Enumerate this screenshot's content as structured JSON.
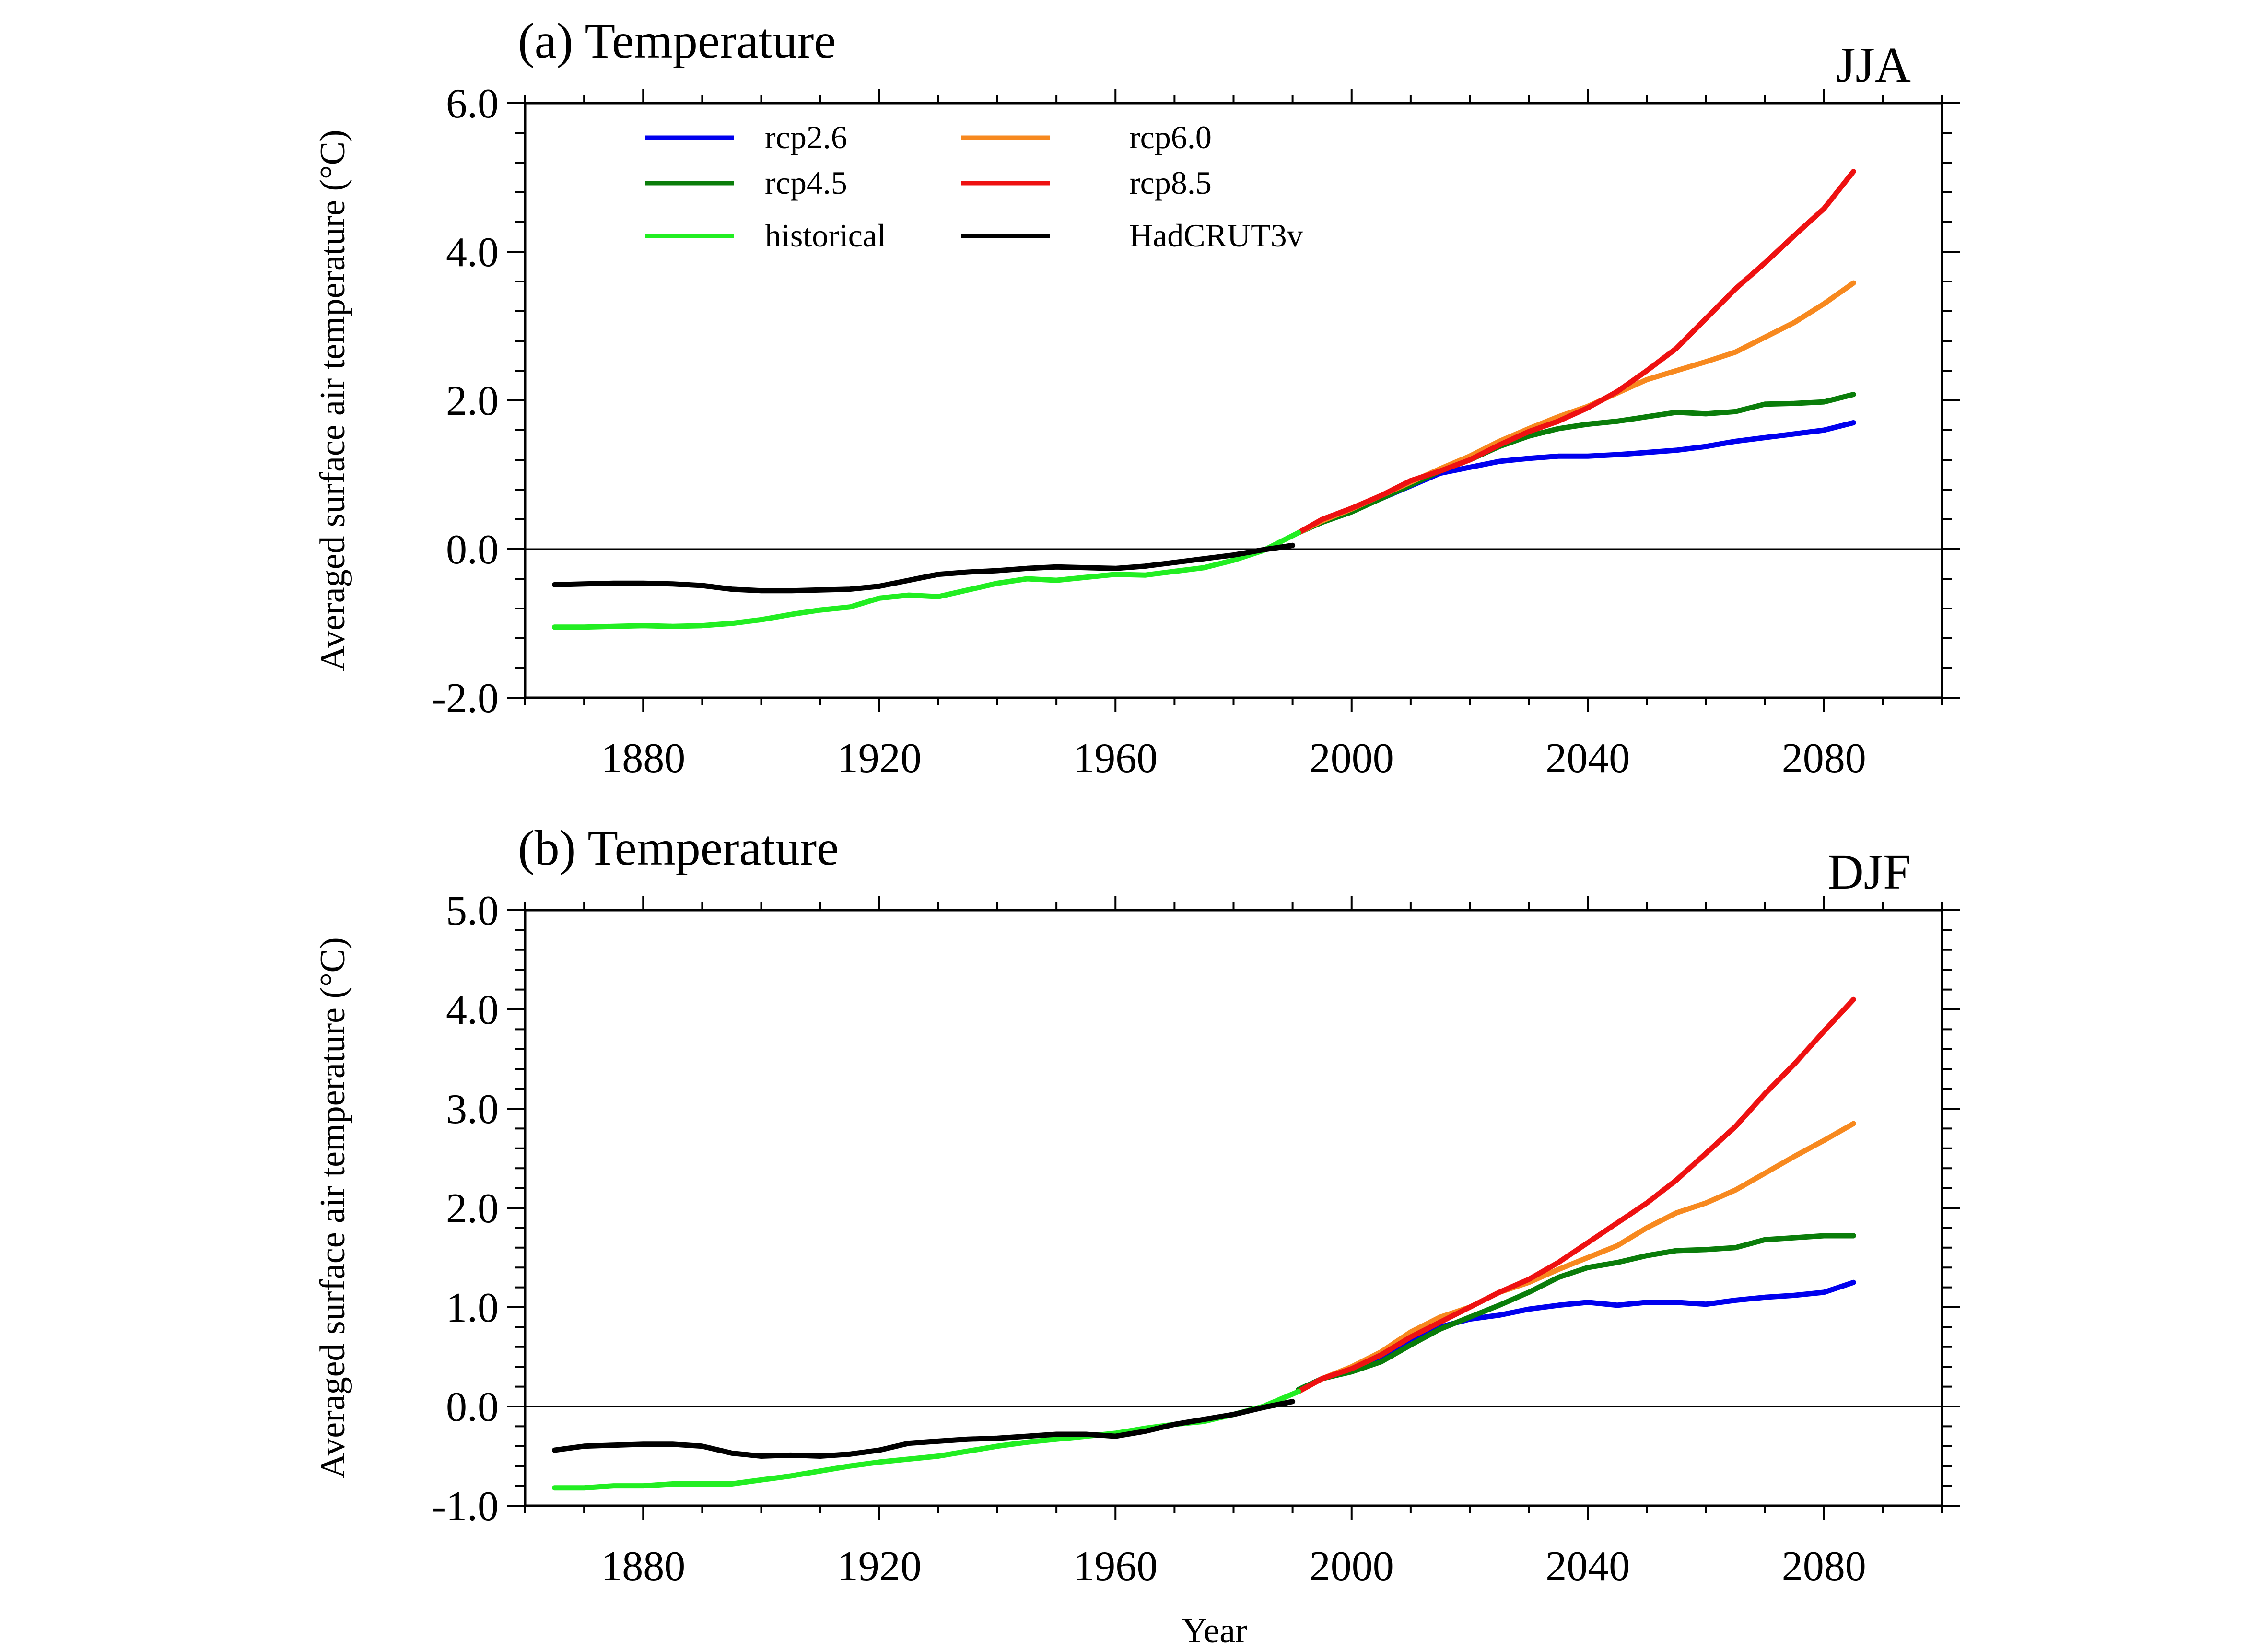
{
  "chart_data": [
    {
      "type": "line",
      "title": "(a) Temperature",
      "season": "JJA",
      "ylabel": "Averaged surface air temperature (°C)",
      "xlabel": "",
      "xlim": [
        1860,
        2100
      ],
      "ylim": [
        -2.0,
        6.0
      ],
      "x_ticks": [
        1880,
        1920,
        1960,
        2000,
        2040,
        2080
      ],
      "x_tick_labels": [
        "1880",
        "1920",
        "1960",
        "2000",
        "2040",
        "2080"
      ],
      "y_ticks": [
        -2.0,
        0.0,
        2.0,
        4.0,
        6.0
      ],
      "y_tick_labels": [
        "-2.0",
        "0.0",
        "2.0",
        "4.0",
        "6.0"
      ],
      "zero_line": true,
      "legend_position": "top-left",
      "series": [
        {
          "name": "rcp2.6",
          "color": "#0000ee",
          "x": [
            1991,
            1995,
            2000,
            2005,
            2010,
            2015,
            2020,
            2025,
            2030,
            2035,
            2040,
            2045,
            2050,
            2055,
            2060,
            2065,
            2070,
            2075,
            2080,
            2085
          ],
          "y": [
            0.22,
            0.38,
            0.52,
            0.68,
            0.85,
            1.02,
            1.1,
            1.18,
            1.22,
            1.25,
            1.25,
            1.27,
            1.3,
            1.33,
            1.38,
            1.45,
            1.5,
            1.55,
            1.6,
            1.7
          ]
        },
        {
          "name": "rcp4.5",
          "color": "#0a7d0a",
          "x": [
            1991,
            1995,
            2000,
            2005,
            2010,
            2015,
            2020,
            2025,
            2030,
            2035,
            2040,
            2045,
            2050,
            2055,
            2060,
            2065,
            2070,
            2075,
            2080,
            2085
          ],
          "y": [
            0.22,
            0.36,
            0.5,
            0.68,
            0.86,
            1.05,
            1.2,
            1.38,
            1.52,
            1.62,
            1.68,
            1.72,
            1.78,
            1.84,
            1.82,
            1.85,
            1.95,
            1.96,
            1.98,
            2.08
          ]
        },
        {
          "name": "rcp6.0",
          "color": "#f7891f",
          "x": [
            1991,
            1995,
            2000,
            2005,
            2010,
            2015,
            2020,
            2025,
            2030,
            2035,
            2040,
            2045,
            2050,
            2055,
            2060,
            2065,
            2070,
            2075,
            2080,
            2085
          ],
          "y": [
            0.22,
            0.38,
            0.54,
            0.72,
            0.9,
            1.08,
            1.25,
            1.45,
            1.62,
            1.78,
            1.92,
            2.1,
            2.28,
            2.4,
            2.52,
            2.65,
            2.85,
            3.05,
            3.3,
            3.58
          ]
        },
        {
          "name": "rcp8.5",
          "color": "#ee1111",
          "x": [
            1991,
            1995,
            2000,
            2005,
            2010,
            2015,
            2020,
            2025,
            2030,
            2035,
            2040,
            2045,
            2050,
            2055,
            2060,
            2065,
            2070,
            2075,
            2080,
            2085
          ],
          "y": [
            0.22,
            0.4,
            0.55,
            0.72,
            0.92,
            1.05,
            1.2,
            1.4,
            1.58,
            1.72,
            1.9,
            2.12,
            2.4,
            2.7,
            3.1,
            3.5,
            3.85,
            4.22,
            4.58,
            5.08
          ]
        },
        {
          "name": "historical",
          "color": "#22ee22",
          "x": [
            1865,
            1870,
            1875,
            1880,
            1885,
            1890,
            1895,
            1900,
            1905,
            1910,
            1915,
            1920,
            1925,
            1930,
            1935,
            1940,
            1945,
            1950,
            1955,
            1960,
            1965,
            1970,
            1975,
            1980,
            1985,
            1991
          ],
          "y": [
            -1.05,
            -1.05,
            -1.04,
            -1.03,
            -1.04,
            -1.03,
            -1.0,
            -0.95,
            -0.88,
            -0.82,
            -0.78,
            -0.66,
            -0.62,
            -0.64,
            -0.55,
            -0.46,
            -0.4,
            -0.42,
            -0.38,
            -0.34,
            -0.35,
            -0.3,
            -0.25,
            -0.15,
            -0.02,
            0.22
          ]
        },
        {
          "name": "HadCRUT3v",
          "color": "#000000",
          "x": [
            1865,
            1870,
            1875,
            1880,
            1885,
            1890,
            1895,
            1900,
            1905,
            1910,
            1915,
            1920,
            1925,
            1930,
            1935,
            1940,
            1945,
            1950,
            1955,
            1960,
            1965,
            1970,
            1975,
            1980,
            1985,
            1990
          ],
          "y": [
            -0.48,
            -0.47,
            -0.46,
            -0.46,
            -0.47,
            -0.49,
            -0.54,
            -0.56,
            -0.56,
            -0.55,
            -0.54,
            -0.5,
            -0.42,
            -0.34,
            -0.31,
            -0.29,
            -0.26,
            -0.24,
            -0.25,
            -0.26,
            -0.23,
            -0.18,
            -0.13,
            -0.08,
            -0.01,
            0.05
          ]
        }
      ]
    },
    {
      "type": "line",
      "title": "(b) Temperature",
      "season": "DJF",
      "ylabel": "Averaged surface air temperature (°C)",
      "xlabel": "Year",
      "xlim": [
        1860,
        2100
      ],
      "ylim": [
        -1.0,
        5.0
      ],
      "x_ticks": [
        1880,
        1920,
        1960,
        2000,
        2040,
        2080
      ],
      "x_tick_labels": [
        "1880",
        "1920",
        "1960",
        "2000",
        "2040",
        "2080"
      ],
      "y_ticks": [
        -1.0,
        0.0,
        1.0,
        2.0,
        3.0,
        4.0,
        5.0
      ],
      "y_tick_labels": [
        "-1.0",
        "0.0",
        "1.0",
        "2.0",
        "3.0",
        "4.0",
        "5.0"
      ],
      "zero_line": true,
      "series": [
        {
          "name": "rcp2.6",
          "color": "#0000ee",
          "x": [
            1991,
            1995,
            2000,
            2005,
            2010,
            2015,
            2020,
            2025,
            2030,
            2035,
            2040,
            2045,
            2050,
            2055,
            2060,
            2065,
            2070,
            2075,
            2080,
            2085
          ],
          "y": [
            0.17,
            0.28,
            0.38,
            0.5,
            0.68,
            0.8,
            0.88,
            0.92,
            0.98,
            1.02,
            1.05,
            1.02,
            1.05,
            1.05,
            1.03,
            1.07,
            1.1,
            1.12,
            1.15,
            1.25
          ]
        },
        {
          "name": "rcp4.5",
          "color": "#0a7d0a",
          "x": [
            1991,
            1995,
            2000,
            2005,
            2010,
            2015,
            2020,
            2025,
            2030,
            2035,
            2040,
            2045,
            2050,
            2055,
            2060,
            2065,
            2070,
            2075,
            2080,
            2085
          ],
          "y": [
            0.17,
            0.28,
            0.35,
            0.45,
            0.62,
            0.78,
            0.9,
            1.02,
            1.15,
            1.3,
            1.4,
            1.45,
            1.52,
            1.57,
            1.58,
            1.6,
            1.68,
            1.7,
            1.72,
            1.72
          ]
        },
        {
          "name": "rcp6.0",
          "color": "#f7891f",
          "x": [
            1991,
            1995,
            2000,
            2005,
            2010,
            2015,
            2020,
            2025,
            2030,
            2035,
            2040,
            2045,
            2050,
            2055,
            2060,
            2065,
            2070,
            2075,
            2080,
            2085
          ],
          "y": [
            0.15,
            0.28,
            0.4,
            0.55,
            0.75,
            0.9,
            1.0,
            1.15,
            1.25,
            1.38,
            1.5,
            1.62,
            1.8,
            1.95,
            2.05,
            2.18,
            2.35,
            2.52,
            2.68,
            2.85
          ]
        },
        {
          "name": "rcp8.5",
          "color": "#ee1111",
          "x": [
            1991,
            1995,
            2000,
            2005,
            2010,
            2015,
            2020,
            2025,
            2030,
            2035,
            2040,
            2045,
            2050,
            2055,
            2060,
            2065,
            2070,
            2075,
            2080,
            2085
          ],
          "y": [
            0.15,
            0.28,
            0.38,
            0.52,
            0.7,
            0.85,
            1.0,
            1.15,
            1.28,
            1.45,
            1.65,
            1.85,
            2.05,
            2.28,
            2.55,
            2.82,
            3.15,
            3.45,
            3.78,
            4.1
          ]
        },
        {
          "name": "historical",
          "color": "#22ee22",
          "x": [
            1865,
            1870,
            1875,
            1880,
            1885,
            1890,
            1895,
            1900,
            1905,
            1910,
            1915,
            1920,
            1925,
            1930,
            1935,
            1940,
            1945,
            1950,
            1955,
            1960,
            1965,
            1970,
            1975,
            1980,
            1985,
            1991
          ],
          "y": [
            -0.82,
            -0.82,
            -0.8,
            -0.8,
            -0.78,
            -0.78,
            -0.78,
            -0.74,
            -0.7,
            -0.65,
            -0.6,
            -0.56,
            -0.53,
            -0.5,
            -0.45,
            -0.4,
            -0.36,
            -0.33,
            -0.3,
            -0.27,
            -0.22,
            -0.18,
            -0.15,
            -0.08,
            0.0,
            0.15
          ]
        },
        {
          "name": "HadCRUT3v",
          "color": "#000000",
          "x": [
            1865,
            1870,
            1875,
            1880,
            1885,
            1890,
            1895,
            1900,
            1905,
            1910,
            1915,
            1920,
            1925,
            1930,
            1935,
            1940,
            1945,
            1950,
            1955,
            1960,
            1965,
            1970,
            1975,
            1980,
            1985,
            1990
          ],
          "y": [
            -0.44,
            -0.4,
            -0.39,
            -0.38,
            -0.38,
            -0.4,
            -0.47,
            -0.5,
            -0.49,
            -0.5,
            -0.48,
            -0.44,
            -0.37,
            -0.35,
            -0.33,
            -0.32,
            -0.3,
            -0.28,
            -0.28,
            -0.3,
            -0.25,
            -0.18,
            -0.13,
            -0.08,
            -0.01,
            0.05
          ]
        }
      ]
    }
  ],
  "legend": {
    "entries": [
      {
        "name": "rcp2.6",
        "color": "#0000ee"
      },
      {
        "name": "rcp6.0",
        "color": "#f7891f"
      },
      {
        "name": "rcp4.5",
        "color": "#0a7d0a"
      },
      {
        "name": "rcp8.5",
        "color": "#ee1111"
      },
      {
        "name": "historical",
        "color": "#22ee22"
      },
      {
        "name": "HadCRUT3v",
        "color": "#000000"
      }
    ]
  }
}
